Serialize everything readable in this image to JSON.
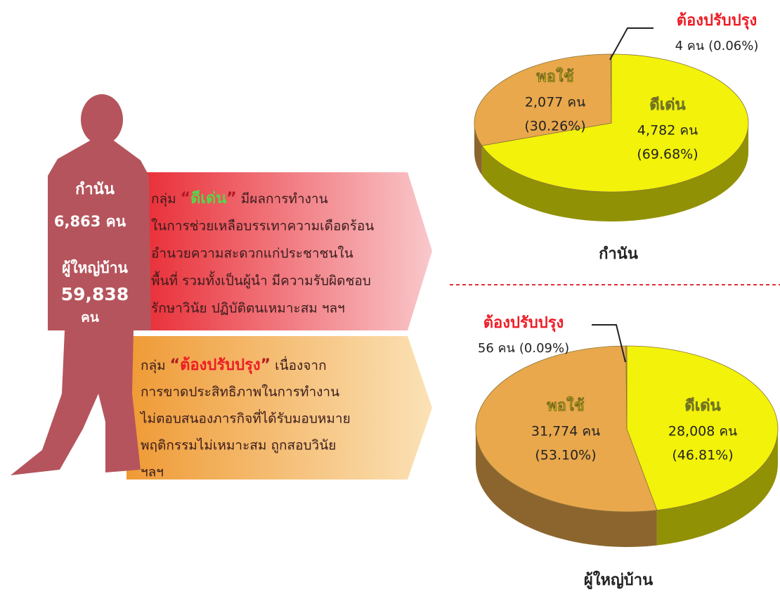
{
  "figure": {
    "kamnan_label": "กำนัน",
    "kamnan_count": "6,863 คน",
    "village_label": "ผู้ใหญ่บ้าน",
    "village_count": "59,838",
    "village_unit": "คน"
  },
  "groups": [
    {
      "lead": "กลุ่ม",
      "open_quote": "“",
      "keyword": "ดีเด่น",
      "close_quote": "”",
      "rest": "มีผลการทำงาน",
      "keyword_color": "#56d64a",
      "lines": [
        "ในการช่วยเหลือบรรเทาความเดือดร้อน",
        "อำนวยความสะดวกแก่ประชาชนใน",
        "พื้นที่ รวมทั้งเป็นผู้นำ มีความรับผิดชอบ",
        "รักษาวินัย ปฏิบัติตนเหมาะสม ฯลฯ"
      ]
    },
    {
      "lead": "กลุ่ม",
      "open_quote": "“",
      "keyword": "ต้องปรับปรุง",
      "close_quote": "”",
      "rest": "เนื่องจาก",
      "keyword_color": "#ee1c25",
      "lines": [
        "การขาดประสิทธิภาพในการทำงาน",
        "ไม่ตอบสนองภารกิจที่ได้รับมอบหมาย",
        "พฤติกรรมไม่เหมาะสม ถูกสอบวินัย",
        "ฯลฯ"
      ]
    }
  ],
  "chart_data": [
    {
      "type": "pie",
      "title": "กำนัน",
      "categories": [
        "ดีเด่น",
        "พอใช้",
        "ต้องปรับปรุง"
      ],
      "values": [
        4782,
        2077,
        4
      ],
      "value_labels": [
        "4,782 คน",
        "2,077 คน",
        "4 คน"
      ],
      "percents": [
        69.68,
        30.26,
        0.06
      ],
      "percent_labels": [
        "(69.68%)",
        "(30.26%)",
        "(0.06%)"
      ],
      "colors": [
        "#f2f20a",
        "#e9a84c",
        "#d4b060"
      ],
      "label_colors": [
        "#35b035",
        "#f4f400",
        "#ee1c25"
      ]
    },
    {
      "type": "pie",
      "title": "ผู้ใหญ่บ้าน",
      "categories": [
        "ดีเด่น",
        "พอใช้",
        "ต้องปรับปรุง"
      ],
      "values": [
        28008,
        31774,
        56
      ],
      "value_labels": [
        "28,008 คน",
        "31,774 คน",
        "56 คน"
      ],
      "percents": [
        46.81,
        53.1,
        0.09
      ],
      "percent_labels": [
        "(46.81%)",
        "(53.10%)",
        "(0.09%)"
      ],
      "colors": [
        "#f2f20a",
        "#e9a84c",
        "#d4b060"
      ],
      "label_colors": [
        "#35b035",
        "#f4f400",
        "#ee1c25"
      ]
    }
  ]
}
